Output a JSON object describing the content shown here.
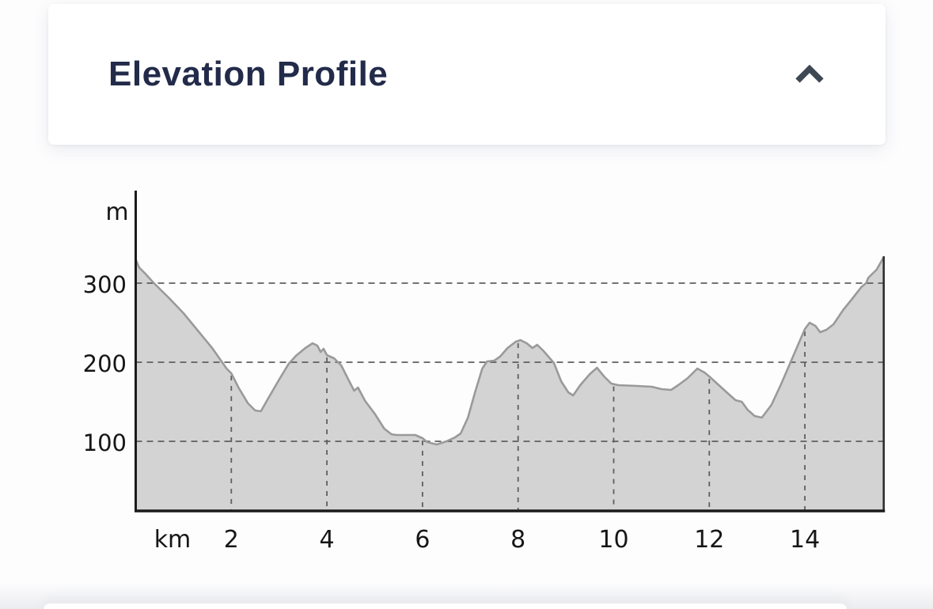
{
  "panel": {
    "title": "Elevation Profile",
    "collapse_icon": "chevron-up",
    "state": "expanded"
  },
  "colors": {
    "page_bg": "#fdfdfe",
    "card_bg": "#ffffff",
    "title_text": "#232b4a",
    "chevron": "#3e4754",
    "profile_fill": "#d3d3d3",
    "profile_stroke": "#9a9a9a",
    "grid": "#5f5f5f",
    "axis": "#1b1b1b",
    "right_border": "#2e2e2e",
    "tick_text": "#161616"
  },
  "chart_data": {
    "type": "area",
    "title": "Elevation Profile",
    "x_unit": "km",
    "y_unit": "m",
    "x_ticks": [
      2,
      4,
      6,
      8,
      10,
      12,
      14
    ],
    "y_ticks": [
      100,
      200,
      300
    ],
    "xlim": [
      0,
      15.65
    ],
    "ylim_visible": [
      15,
      415
    ],
    "grid": "dashed",
    "profile": [
      [
        0,
        330
      ],
      [
        0.07,
        320
      ],
      [
        0.2,
        312
      ],
      [
        0.38,
        300
      ],
      [
        0.7,
        281
      ],
      [
        1.0,
        262
      ],
      [
        1.3,
        240
      ],
      [
        1.6,
        218
      ],
      [
        1.9,
        192
      ],
      [
        2.0,
        186
      ],
      [
        2.15,
        168
      ],
      [
        2.35,
        148
      ],
      [
        2.5,
        139
      ],
      [
        2.62,
        138
      ],
      [
        2.75,
        152
      ],
      [
        3.0,
        178
      ],
      [
        3.2,
        198
      ],
      [
        3.35,
        208
      ],
      [
        3.55,
        218
      ],
      [
        3.7,
        224
      ],
      [
        3.8,
        221
      ],
      [
        3.87,
        213
      ],
      [
        3.93,
        217
      ],
      [
        4.0,
        209
      ],
      [
        4.15,
        205
      ],
      [
        4.3,
        196
      ],
      [
        4.45,
        178
      ],
      [
        4.57,
        164
      ],
      [
        4.65,
        168
      ],
      [
        4.8,
        151
      ],
      [
        5.0,
        135
      ],
      [
        5.2,
        116
      ],
      [
        5.35,
        109
      ],
      [
        5.45,
        108
      ],
      [
        5.85,
        108
      ],
      [
        6.0,
        104
      ],
      [
        6.1,
        99
      ],
      [
        6.3,
        96
      ],
      [
        6.5,
        100
      ],
      [
        6.68,
        105
      ],
      [
        6.8,
        110
      ],
      [
        6.95,
        130
      ],
      [
        7.1,
        162
      ],
      [
        7.25,
        192
      ],
      [
        7.35,
        201
      ],
      [
        7.5,
        202
      ],
      [
        7.62,
        207
      ],
      [
        7.78,
        218
      ],
      [
        7.95,
        226
      ],
      [
        8.05,
        228
      ],
      [
        8.18,
        224
      ],
      [
        8.3,
        218
      ],
      [
        8.4,
        222
      ],
      [
        8.52,
        215
      ],
      [
        8.65,
        206
      ],
      [
        8.75,
        199
      ],
      [
        8.9,
        176
      ],
      [
        9.05,
        162
      ],
      [
        9.15,
        158
      ],
      [
        9.3,
        171
      ],
      [
        9.5,
        185
      ],
      [
        9.65,
        193
      ],
      [
        9.8,
        182
      ],
      [
        9.95,
        173
      ],
      [
        10.1,
        171
      ],
      [
        10.5,
        170
      ],
      [
        10.8,
        169
      ],
      [
        11.0,
        166
      ],
      [
        11.2,
        165
      ],
      [
        11.35,
        171
      ],
      [
        11.55,
        180
      ],
      [
        11.75,
        192
      ],
      [
        11.9,
        187
      ],
      [
        12.0,
        182
      ],
      [
        12.2,
        171
      ],
      [
        12.4,
        160
      ],
      [
        12.55,
        152
      ],
      [
        12.68,
        150
      ],
      [
        12.8,
        140
      ],
      [
        12.95,
        132
      ],
      [
        13.1,
        130
      ],
      [
        13.3,
        146
      ],
      [
        13.5,
        172
      ],
      [
        13.7,
        200
      ],
      [
        13.85,
        221
      ],
      [
        14.0,
        242
      ],
      [
        14.1,
        250
      ],
      [
        14.22,
        246
      ],
      [
        14.32,
        238
      ],
      [
        14.45,
        241
      ],
      [
        14.6,
        248
      ],
      [
        14.8,
        266
      ],
      [
        15.0,
        281
      ],
      [
        15.18,
        295
      ],
      [
        15.28,
        300
      ],
      [
        15.33,
        307
      ],
      [
        15.5,
        317
      ],
      [
        15.65,
        333
      ]
    ]
  }
}
